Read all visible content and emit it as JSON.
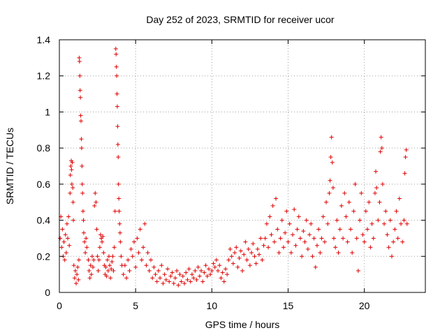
{
  "chart_data": {
    "type": "scatter",
    "title": "Day 252 of 2023, SRMTID for receiver ucor",
    "xlabel": "GPS time / hours",
    "ylabel": "SRMTID / TECUs",
    "xlim": [
      0,
      24
    ],
    "ylim": [
      0,
      1.4
    ],
    "xticks": [
      "0",
      "5",
      "10",
      "15",
      "20"
    ],
    "yticks": [
      "0",
      "0.2",
      "0.4",
      "0.6",
      "0.8",
      "1",
      "1.2",
      "1.4"
    ],
    "marker": "+",
    "color": "#e00000",
    "series": [
      {
        "name": "SRMTID",
        "points": [
          [
            0.05,
            0.3
          ],
          [
            0.1,
            0.42
          ],
          [
            0.15,
            0.25
          ],
          [
            0.2,
            0.35
          ],
          [
            0.25,
            0.2
          ],
          [
            0.3,
            0.28
          ],
          [
            0.35,
            0.18
          ],
          [
            0.4,
            0.32
          ],
          [
            0.45,
            0.22
          ],
          [
            0.5,
            0.38
          ],
          [
            0.55,
            0.3
          ],
          [
            0.6,
            0.42
          ],
          [
            0.65,
            0.26
          ],
          [
            0.7,
            0.55
          ],
          [
            0.72,
            0.65
          ],
          [
            0.75,
            0.7
          ],
          [
            0.78,
            0.73
          ],
          [
            0.8,
            0.68
          ],
          [
            0.82,
            0.6
          ],
          [
            0.85,
            0.72
          ],
          [
            0.88,
            0.58
          ],
          [
            0.9,
            0.5
          ],
          [
            0.92,
            0.4
          ],
          [
            0.95,
            0.15
          ],
          [
            1.0,
            0.08
          ],
          [
            1.05,
            0.12
          ],
          [
            1.1,
            0.05
          ],
          [
            1.15,
            0.1
          ],
          [
            1.2,
            0.14
          ],
          [
            1.25,
            0.07
          ],
          [
            1.28,
            0.18
          ],
          [
            1.3,
            1.3
          ],
          [
            1.32,
            1.28
          ],
          [
            1.34,
            1.2
          ],
          [
            1.36,
            1.12
          ],
          [
            1.38,
            1.08
          ],
          [
            1.4,
            0.98
          ],
          [
            1.42,
            0.95
          ],
          [
            1.44,
            0.85
          ],
          [
            1.46,
            0.8
          ],
          [
            1.48,
            0.7
          ],
          [
            1.5,
            0.6
          ],
          [
            1.52,
            0.55
          ],
          [
            1.55,
            0.45
          ],
          [
            1.58,
            0.4
          ],
          [
            1.6,
            0.33
          ],
          [
            1.65,
            0.28
          ],
          [
            1.7,
            0.22
          ],
          [
            1.75,
            0.3
          ],
          [
            1.8,
            0.25
          ],
          [
            1.9,
            0.18
          ],
          [
            1.95,
            0.12
          ],
          [
            2.0,
            0.08
          ],
          [
            2.05,
            0.15
          ],
          [
            2.1,
            0.1
          ],
          [
            2.15,
            0.2
          ],
          [
            2.2,
            0.14
          ],
          [
            2.25,
            0.18
          ],
          [
            2.3,
            0.48
          ],
          [
            2.35,
            0.55
          ],
          [
            2.4,
            0.5
          ],
          [
            2.45,
            0.35
          ],
          [
            2.5,
            0.2
          ],
          [
            2.55,
            0.12
          ],
          [
            2.6,
            0.18
          ],
          [
            2.65,
            0.25
          ],
          [
            2.7,
            0.32
          ],
          [
            2.75,
            0.3
          ],
          [
            2.8,
            0.28
          ],
          [
            2.85,
            0.31
          ],
          [
            2.9,
            0.22
          ],
          [
            2.95,
            0.15
          ],
          [
            3.0,
            0.1
          ],
          [
            3.05,
            0.14
          ],
          [
            3.1,
            0.09
          ],
          [
            3.15,
            0.18
          ],
          [
            3.2,
            0.12
          ],
          [
            3.25,
            0.2
          ],
          [
            3.3,
            0.15
          ],
          [
            3.35,
            0.08
          ],
          [
            3.4,
            0.13
          ],
          [
            3.45,
            0.17
          ],
          [
            3.5,
            0.2
          ],
          [
            3.55,
            0.12
          ],
          [
            3.6,
            0.25
          ],
          [
            3.65,
            0.45
          ],
          [
            3.7,
            1.35
          ],
          [
            3.72,
            1.32
          ],
          [
            3.74,
            1.25
          ],
          [
            3.76,
            1.2
          ],
          [
            3.78,
            1.1
          ],
          [
            3.8,
            1.03
          ],
          [
            3.82,
            0.92
          ],
          [
            3.84,
            0.82
          ],
          [
            3.86,
            0.75
          ],
          [
            3.88,
            0.6
          ],
          [
            3.9,
            0.52
          ],
          [
            3.92,
            0.45
          ],
          [
            3.95,
            0.38
          ],
          [
            3.98,
            0.33
          ],
          [
            4.0,
            0.28
          ],
          [
            4.05,
            0.2
          ],
          [
            4.1,
            0.15
          ],
          [
            4.2,
            0.1
          ],
          [
            4.3,
            0.15
          ],
          [
            4.4,
            0.08
          ],
          [
            4.5,
            0.18
          ],
          [
            4.6,
            0.12
          ],
          [
            4.7,
            0.24
          ],
          [
            4.8,
            0.2
          ],
          [
            4.9,
            0.28
          ],
          [
            5.0,
            0.14
          ],
          [
            5.1,
            0.3
          ],
          [
            5.2,
            0.22
          ],
          [
            5.3,
            0.35
          ],
          [
            5.4,
            0.18
          ],
          [
            5.5,
            0.25
          ],
          [
            5.6,
            0.38
          ],
          [
            5.7,
            0.15
          ],
          [
            5.8,
            0.22
          ],
          [
            5.9,
            0.12
          ],
          [
            6.0,
            0.18
          ],
          [
            6.1,
            0.08
          ],
          [
            6.2,
            0.14
          ],
          [
            6.3,
            0.1
          ],
          [
            6.4,
            0.06
          ],
          [
            6.5,
            0.12
          ],
          [
            6.6,
            0.08
          ],
          [
            6.7,
            0.15
          ],
          [
            6.8,
            0.05
          ],
          [
            6.9,
            0.1
          ],
          [
            7.0,
            0.07
          ],
          [
            7.1,
            0.13
          ],
          [
            7.2,
            0.06
          ],
          [
            7.3,
            0.09
          ],
          [
            7.4,
            0.11
          ],
          [
            7.5,
            0.05
          ],
          [
            7.6,
            0.08
          ],
          [
            7.7,
            0.12
          ],
          [
            7.8,
            0.04
          ],
          [
            7.9,
            0.1
          ],
          [
            8.0,
            0.06
          ],
          [
            8.1,
            0.09
          ],
          [
            8.2,
            0.05
          ],
          [
            8.3,
            0.11
          ],
          [
            8.4,
            0.07
          ],
          [
            8.5,
            0.13
          ],
          [
            8.6,
            0.06
          ],
          [
            8.7,
            0.1
          ],
          [
            8.8,
            0.08
          ],
          [
            8.9,
            0.12
          ],
          [
            9.0,
            0.07
          ],
          [
            9.1,
            0.14
          ],
          [
            9.2,
            0.09
          ],
          [
            9.3,
            0.12
          ],
          [
            9.4,
            0.06
          ],
          [
            9.5,
            0.11
          ],
          [
            9.6,
            0.15
          ],
          [
            9.7,
            0.09
          ],
          [
            9.8,
            0.13
          ],
          [
            9.9,
            0.1
          ],
          [
            10.0,
            0.12
          ],
          [
            10.1,
            0.16
          ],
          [
            10.2,
            0.14
          ],
          [
            10.3,
            0.18
          ],
          [
            10.4,
            0.12
          ],
          [
            10.5,
            0.15
          ],
          [
            10.6,
            0.08
          ],
          [
            10.7,
            0.11
          ],
          [
            10.8,
            0.06
          ],
          [
            10.9,
            0.13
          ],
          [
            11.0,
            0.1
          ],
          [
            11.1,
            0.18
          ],
          [
            11.2,
            0.24
          ],
          [
            11.3,
            0.2
          ],
          [
            11.4,
            0.16
          ],
          [
            11.5,
            0.22
          ],
          [
            11.6,
            0.25
          ],
          [
            11.7,
            0.14
          ],
          [
            11.8,
            0.19
          ],
          [
            11.9,
            0.23
          ],
          [
            12.0,
            0.12
          ],
          [
            12.1,
            0.21
          ],
          [
            12.2,
            0.28
          ],
          [
            12.3,
            0.18
          ],
          [
            12.4,
            0.24
          ],
          [
            12.5,
            0.15
          ],
          [
            12.6,
            0.22
          ],
          [
            12.7,
            0.27
          ],
          [
            12.8,
            0.2
          ],
          [
            12.9,
            0.16
          ],
          [
            13.0,
            0.24
          ],
          [
            13.1,
            0.21
          ],
          [
            13.2,
            0.3
          ],
          [
            13.3,
            0.18
          ],
          [
            13.4,
            0.26
          ],
          [
            13.5,
            0.3
          ],
          [
            13.6,
            0.38
          ],
          [
            13.7,
            0.25
          ],
          [
            13.8,
            0.42
          ],
          [
            13.9,
            0.32
          ],
          [
            14.0,
            0.48
          ],
          [
            14.1,
            0.28
          ],
          [
            14.2,
            0.52
          ],
          [
            14.3,
            0.35
          ],
          [
            14.4,
            0.22
          ],
          [
            14.5,
            0.3
          ],
          [
            14.6,
            0.4
          ],
          [
            14.7,
            0.25
          ],
          [
            14.8,
            0.33
          ],
          [
            14.9,
            0.45
          ],
          [
            15.0,
            0.28
          ],
          [
            15.1,
            0.38
          ],
          [
            15.2,
            0.22
          ],
          [
            15.3,
            0.32
          ],
          [
            15.4,
            0.46
          ],
          [
            15.5,
            0.26
          ],
          [
            15.6,
            0.35
          ],
          [
            15.7,
            0.42
          ],
          [
            15.8,
            0.3
          ],
          [
            15.9,
            0.2
          ],
          [
            16.0,
            0.34
          ],
          [
            16.1,
            0.28
          ],
          [
            16.2,
            0.4
          ],
          [
            16.3,
            0.24
          ],
          [
            16.4,
            0.32
          ],
          [
            16.5,
            0.38
          ],
          [
            16.6,
            0.2
          ],
          [
            16.7,
            0.3
          ],
          [
            16.8,
            0.14
          ],
          [
            16.9,
            0.26
          ],
          [
            17.0,
            0.35
          ],
          [
            17.1,
            0.22
          ],
          [
            17.2,
            0.3
          ],
          [
            17.3,
            0.42
          ],
          [
            17.4,
            0.28
          ],
          [
            17.5,
            0.5
          ],
          [
            17.6,
            0.38
          ],
          [
            17.7,
            0.55
          ],
          [
            17.75,
            0.62
          ],
          [
            17.8,
            0.75
          ],
          [
            17.85,
            0.86
          ],
          [
            17.9,
            0.72
          ],
          [
            17.95,
            0.58
          ],
          [
            18.0,
            0.3
          ],
          [
            18.1,
            0.25
          ],
          [
            18.2,
            0.4
          ],
          [
            18.3,
            0.22
          ],
          [
            18.4,
            0.35
          ],
          [
            18.5,
            0.48
          ],
          [
            18.6,
            0.3
          ],
          [
            18.7,
            0.55
          ],
          [
            18.8,
            0.42
          ],
          [
            18.9,
            0.28
          ],
          [
            19.0,
            0.5
          ],
          [
            19.1,
            0.35
          ],
          [
            19.2,
            0.22
          ],
          [
            19.3,
            0.45
          ],
          [
            19.4,
            0.6
          ],
          [
            19.5,
            0.3
          ],
          [
            19.6,
            0.12
          ],
          [
            19.7,
            0.4
          ],
          [
            19.8,
            0.55
          ],
          [
            19.9,
            0.32
          ],
          [
            20.0,
            0.28
          ],
          [
            20.1,
            0.45
          ],
          [
            20.2,
            0.35
          ],
          [
            20.3,
            0.5
          ],
          [
            20.4,
            0.25
          ],
          [
            20.5,
            0.38
          ],
          [
            20.6,
            0.3
          ],
          [
            20.7,
            0.55
          ],
          [
            20.75,
            0.67
          ],
          [
            20.8,
            0.58
          ],
          [
            20.9,
            0.4
          ],
          [
            21.0,
            0.5
          ],
          [
            21.05,
            0.78
          ],
          [
            21.1,
            0.86
          ],
          [
            21.15,
            0.8
          ],
          [
            21.2,
            0.6
          ],
          [
            21.3,
            0.38
          ],
          [
            21.4,
            0.45
          ],
          [
            21.5,
            0.32
          ],
          [
            21.6,
            0.25
          ],
          [
            21.7,
            0.4
          ],
          [
            21.8,
            0.2
          ],
          [
            21.9,
            0.28
          ],
          [
            22.0,
            0.35
          ],
          [
            22.1,
            0.45
          ],
          [
            22.2,
            0.3
          ],
          [
            22.3,
            0.52
          ],
          [
            22.4,
            0.38
          ],
          [
            22.5,
            0.28
          ],
          [
            22.6,
            0.4
          ],
          [
            22.65,
            0.66
          ],
          [
            22.7,
            0.75
          ],
          [
            22.75,
            0.79
          ],
          [
            22.8,
            0.38
          ]
        ]
      }
    ]
  }
}
